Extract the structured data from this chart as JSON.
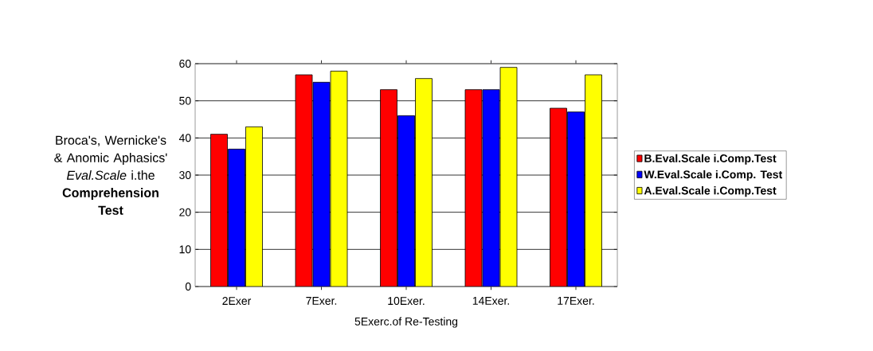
{
  "chart_data": {
    "type": "bar",
    "ylabel": "Broca's, Wernicke's & Anomic Aphasics' *Eval.Scale* i.the **Comprehension Test**",
    "xlabel": "5Exerc.of Re-Testing",
    "categories": [
      "2Exer",
      "7Exer.",
      "10Exer.",
      "14Exer.",
      "17Exer."
    ],
    "series": [
      {
        "name": "B.Eval.Scale i.Comp.Test",
        "color": "#ff0000",
        "values": [
          41,
          57,
          53,
          53,
          48
        ]
      },
      {
        "name": "W.Eval.Scale i.Comp. Test",
        "color": "#0000ff",
        "values": [
          37,
          55,
          46,
          53,
          47
        ]
      },
      {
        "name": "A.Eval.Scale i.Comp.Test",
        "color": "#ffff00",
        "values": [
          43,
          58,
          56,
          59,
          57
        ]
      }
    ],
    "ylim": [
      0,
      60
    ],
    "yticks": [
      0,
      10,
      20,
      30,
      40,
      50,
      60
    ],
    "grid": "y",
    "legend": "right"
  }
}
